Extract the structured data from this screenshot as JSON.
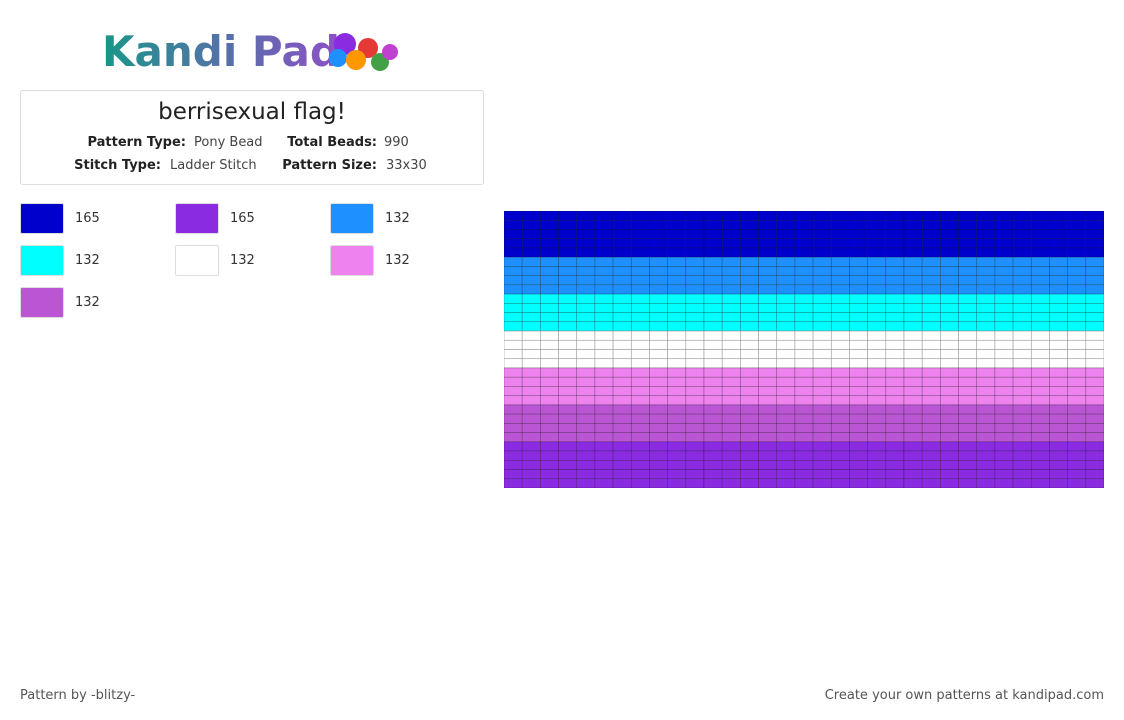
{
  "header": {
    "logo": "Kandi Pad",
    "title": "berrisexual flag!",
    "info": [
      {
        "label": "Pattern Type:",
        "value": "Pony Bead"
      },
      {
        "label": "Total Beads:",
        "value": "990"
      },
      {
        "label": "Stitch Type:",
        "value": "Ladder Stitch"
      },
      {
        "label": "Pattern Size:",
        "value": "33x30"
      }
    ]
  },
  "legend": [
    {
      "color": "#0000cd",
      "count": 165
    },
    {
      "color": "#8a2be2",
      "count": 165
    },
    {
      "color": "#1e90ff",
      "count": 132
    },
    {
      "color": "#00ffff",
      "count": 132
    },
    {
      "color": "#ffffff",
      "count": 132
    },
    {
      "color": "#ee82ee",
      "count": 132
    },
    {
      "color": "#ba55d3",
      "count": 132
    }
  ],
  "grid": {
    "columns": 33,
    "row_colors": [
      "#0000cd",
      "#0000cd",
      "#0000cd",
      "#0000cd",
      "#0000cd",
      "#1e90ff",
      "#1e90ff",
      "#1e90ff",
      "#1e90ff",
      "#00ffff",
      "#00ffff",
      "#00ffff",
      "#00ffff",
      "#ffffff",
      "#ffffff",
      "#ffffff",
      "#ffffff",
      "#ee82ee",
      "#ee82ee",
      "#ee82ee",
      "#ee82ee",
      "#ba55d3",
      "#ba55d3",
      "#ba55d3",
      "#ba55d3",
      "#8a2be2",
      "#8a2be2",
      "#8a2be2",
      "#8a2be2",
      "#8a2be2"
    ]
  },
  "footer": {
    "credit": "Pattern by -blitzy-",
    "promo": "Create your own patterns at kandipad.com"
  }
}
